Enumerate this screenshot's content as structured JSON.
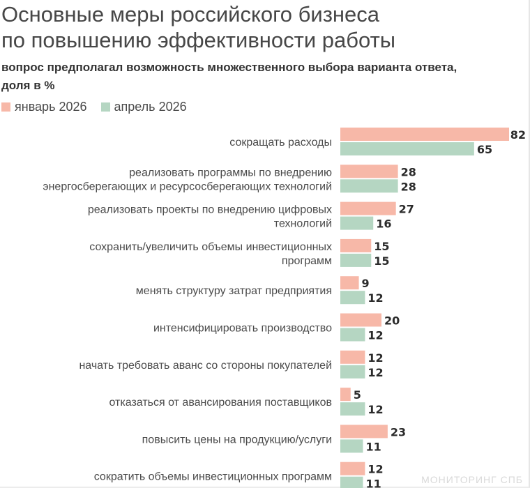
{
  "header": {
    "title_line1": "Основные меры российского бизнеса",
    "title_line2": "по повышению эффективности работы",
    "subtitle_line1": "вопрос предполагал возможность множественного выбора варианта ответа,",
    "subtitle_line2": "доля в %"
  },
  "legend": [
    {
      "label": "январь 2026",
      "color": "#f7b8a8"
    },
    {
      "label": "апрель 2026",
      "color": "#b5d6c2"
    }
  ],
  "watermark": "МОНИТОРИНГ СПБ",
  "chart_data": {
    "type": "bar",
    "orientation": "horizontal",
    "title": "Основные меры российского бизнеса по повышению эффективности работы",
    "subtitle": "вопрос предполагал возможность множественного выбора варианта ответа, доля в %",
    "categories": [
      [
        "сокращать расходы"
      ],
      [
        "реализовать программы по внедрению",
        "энергосберегающих и ресурсосберегающих технологий"
      ],
      [
        "реализовать проекты по внедрению цифровых",
        "технологий"
      ],
      [
        "сохранить/увеличить объемы инвестиционных",
        "программ"
      ],
      [
        "менять структуру затрат предприятия"
      ],
      [
        "интенсифицировать производство"
      ],
      [
        "начать требовать аванс со стороны покупателей"
      ],
      [
        "отказаться от авансирования поставщиков"
      ],
      [
        "повысить цены на продукцию/услуги"
      ],
      [
        "сократить объемы инвестиционных программ"
      ]
    ],
    "series": [
      {
        "name": "январь 2026",
        "color": "#f7b8a8",
        "values": [
          82,
          28,
          27,
          15,
          9,
          20,
          12,
          5,
          23,
          12
        ]
      },
      {
        "name": "апрель 2026",
        "color": "#b5d6c2",
        "values": [
          65,
          28,
          16,
          15,
          12,
          12,
          12,
          12,
          11,
          11
        ]
      }
    ],
    "xlim": [
      0,
      82
    ],
    "grid": false,
    "legend_position": "top-left"
  }
}
